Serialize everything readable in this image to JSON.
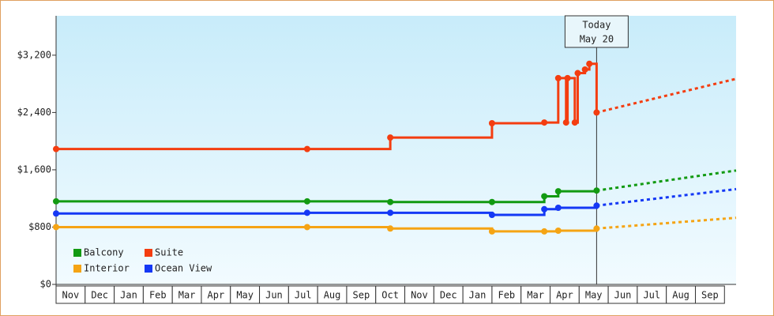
{
  "chart_data": {
    "type": "step-line",
    "categories": [
      "Nov",
      "Dec",
      "Jan",
      "Feb",
      "Mar",
      "Apr",
      "May",
      "Jun",
      "Jul",
      "Aug",
      "Sep",
      "Oct",
      "Nov",
      "Dec",
      "Jan",
      "Feb",
      "Mar",
      "Apr",
      "May",
      "Jun",
      "Jul",
      "Aug",
      "Sep"
    ],
    "xlim": [
      0,
      23.4
    ],
    "ylim": [
      0,
      3750
    ],
    "yticks": [
      {
        "value": 0,
        "label": "$0"
      },
      {
        "value": 800,
        "label": "$800"
      },
      {
        "value": 1600,
        "label": "$1,600"
      },
      {
        "value": 2400,
        "label": "$2,400"
      },
      {
        "value": 3200,
        "label": "$3,200"
      }
    ],
    "annotation": {
      "x": 18.6,
      "lines": [
        "Today",
        "May 20"
      ]
    },
    "legend": "bottom-left",
    "series": [
      {
        "name": "Balcony",
        "color": "#129a12",
        "x": [
          0,
          8.64,
          11.5,
          15.0,
          16.8,
          17.28,
          18.6
        ],
        "values": [
          1160,
          1160,
          1150,
          1150,
          1230,
          1300,
          1310
        ],
        "projection": {
          "x": [
            18.6,
            23.4
          ],
          "values": [
            1310,
            1590
          ]
        }
      },
      {
        "name": "Suite",
        "color": "#f43d10",
        "x": [
          0,
          8.64,
          11.5,
          15.0,
          16.8,
          17.28,
          17.55,
          17.6,
          17.85,
          17.95,
          18.2,
          18.35,
          18.6
        ],
        "values": [
          1890,
          1890,
          2050,
          2250,
          2260,
          2880,
          2260,
          2880,
          2260,
          2950,
          3000,
          3080,
          2400
        ],
        "projection": {
          "x": [
            18.6,
            23.4
          ],
          "values": [
            2400,
            2870
          ]
        }
      },
      {
        "name": "Interior",
        "color": "#f5a414",
        "x": [
          0,
          8.64,
          11.5,
          15.0,
          16.8,
          17.28,
          18.6
        ],
        "values": [
          800,
          800,
          780,
          740,
          740,
          750,
          780
        ],
        "projection": {
          "x": [
            18.6,
            23.4
          ],
          "values": [
            780,
            930
          ]
        }
      },
      {
        "name": "Ocean View",
        "color": "#1438f5",
        "x": [
          0,
          8.64,
          11.5,
          15.0,
          16.8,
          17.28,
          18.6
        ],
        "values": [
          990,
          1000,
          1000,
          970,
          1050,
          1070,
          1100
        ],
        "projection": {
          "x": [
            18.6,
            23.4
          ],
          "values": [
            1100,
            1330
          ]
        }
      }
    ]
  }
}
